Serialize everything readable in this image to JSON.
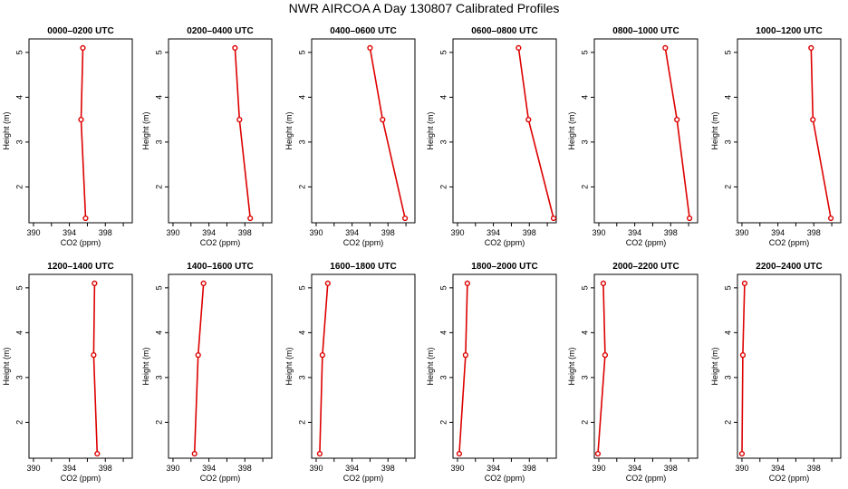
{
  "figure": {
    "title": "NWR AIRCOA A  Day 130807  Calibrated Profiles"
  },
  "style": {
    "line_color": "#dd0000",
    "axis_color": "#000000"
  },
  "chart_data": [
    {
      "type": "line",
      "title": "0000–0200 UTC",
      "xlabel": "CO2 (ppm)",
      "ylabel": "Height (m)",
      "xlim": [
        389.5,
        401.0
      ],
      "ylim": [
        1.2,
        5.3
      ],
      "xticks": [
        390,
        394,
        398
      ],
      "yticks": [
        2,
        3,
        4,
        5
      ],
      "x": [
        395.5,
        395.3,
        395.8
      ],
      "y": [
        5.1,
        3.5,
        1.3
      ]
    },
    {
      "type": "line",
      "title": "0200–0400 UTC",
      "xlabel": "CO2 (ppm)",
      "ylabel": "Height (m)",
      "xlim": [
        389.5,
        401.0
      ],
      "ylim": [
        1.2,
        5.3
      ],
      "xticks": [
        390,
        394,
        398
      ],
      "yticks": [
        2,
        3,
        4,
        5
      ],
      "x": [
        396.9,
        397.4,
        398.6
      ],
      "y": [
        5.1,
        3.5,
        1.3
      ]
    },
    {
      "type": "line",
      "title": "0400–0600 UTC",
      "xlabel": "CO2 (ppm)",
      "ylabel": "Height (m)",
      "xlim": [
        389.5,
        401.0
      ],
      "ylim": [
        1.2,
        5.3
      ],
      "xticks": [
        390,
        394,
        398
      ],
      "yticks": [
        2,
        3,
        4,
        5
      ],
      "x": [
        396.0,
        397.4,
        399.9
      ],
      "y": [
        5.1,
        3.5,
        1.3
      ]
    },
    {
      "type": "line",
      "title": "0600–0800 UTC",
      "xlabel": "CO2 (ppm)",
      "ylabel": "Height (m)",
      "xlim": [
        389.5,
        401.0
      ],
      "ylim": [
        1.2,
        5.3
      ],
      "xticks": [
        390,
        394,
        398
      ],
      "yticks": [
        2,
        3,
        4,
        5
      ],
      "x": [
        396.8,
        397.9,
        400.7
      ],
      "y": [
        5.1,
        3.5,
        1.3
      ]
    },
    {
      "type": "line",
      "title": "0800–1000 UTC",
      "xlabel": "CO2 (ppm)",
      "ylabel": "Height (m)",
      "xlim": [
        389.5,
        401.0
      ],
      "ylim": [
        1.2,
        5.3
      ],
      "xticks": [
        390,
        394,
        398
      ],
      "yticks": [
        2,
        3,
        4,
        5
      ],
      "x": [
        397.4,
        398.7,
        400.1
      ],
      "y": [
        5.1,
        3.5,
        1.3
      ]
    },
    {
      "type": "line",
      "title": "1000–1200 UTC",
      "xlabel": "CO2 (ppm)",
      "ylabel": "Height (m)",
      "xlim": [
        389.5,
        401.0
      ],
      "ylim": [
        1.2,
        5.3
      ],
      "xticks": [
        390,
        394,
        398
      ],
      "yticks": [
        2,
        3,
        4,
        5
      ],
      "x": [
        397.7,
        397.9,
        399.9
      ],
      "y": [
        5.1,
        3.5,
        1.3
      ]
    },
    {
      "type": "line",
      "title": "1200–1400 UTC",
      "xlabel": "CO2 (ppm)",
      "ylabel": "Height (m)",
      "xlim": [
        389.5,
        401.0
      ],
      "ylim": [
        1.2,
        5.3
      ],
      "xticks": [
        390,
        394,
        398
      ],
      "yticks": [
        2,
        3,
        4,
        5
      ],
      "x": [
        396.8,
        396.7,
        397.1
      ],
      "y": [
        5.1,
        3.5,
        1.3
      ]
    },
    {
      "type": "line",
      "title": "1400–1600 UTC",
      "xlabel": "CO2 (ppm)",
      "ylabel": "Height (m)",
      "xlim": [
        389.5,
        401.0
      ],
      "ylim": [
        1.2,
        5.3
      ],
      "xticks": [
        390,
        394,
        398
      ],
      "yticks": [
        2,
        3,
        4,
        5
      ],
      "x": [
        393.4,
        392.8,
        392.4
      ],
      "y": [
        5.1,
        3.5,
        1.3
      ]
    },
    {
      "type": "line",
      "title": "1600–1800 UTC",
      "xlabel": "CO2 (ppm)",
      "ylabel": "Height (m)",
      "xlim": [
        389.5,
        401.0
      ],
      "ylim": [
        1.2,
        5.3
      ],
      "xticks": [
        390,
        394,
        398
      ],
      "yticks": [
        2,
        3,
        4,
        5
      ],
      "x": [
        391.3,
        390.7,
        390.4
      ],
      "y": [
        5.1,
        3.5,
        1.3
      ]
    },
    {
      "type": "line",
      "title": "1800–2000 UTC",
      "xlabel": "CO2 (ppm)",
      "ylabel": "Height (m)",
      "xlim": [
        389.5,
        401.0
      ],
      "ylim": [
        1.2,
        5.3
      ],
      "xticks": [
        390,
        394,
        398
      ],
      "yticks": [
        2,
        3,
        4,
        5
      ],
      "x": [
        391.1,
        390.9,
        390.2
      ],
      "y": [
        5.1,
        3.5,
        1.3
      ]
    },
    {
      "type": "line",
      "title": "2000–2200 UTC",
      "xlabel": "CO2 (ppm)",
      "ylabel": "Height (m)",
      "xlim": [
        389.5,
        401.0
      ],
      "ylim": [
        1.2,
        5.3
      ],
      "xticks": [
        390,
        394,
        398
      ],
      "yticks": [
        2,
        3,
        4,
        5
      ],
      "x": [
        390.5,
        390.7,
        389.9
      ],
      "y": [
        5.1,
        3.5,
        1.3
      ]
    },
    {
      "type": "line",
      "title": "2200–2400 UTC",
      "xlabel": "CO2 (ppm)",
      "ylabel": "Height (m)",
      "xlim": [
        389.5,
        401.0
      ],
      "ylim": [
        1.2,
        5.3
      ],
      "xticks": [
        390,
        394,
        398
      ],
      "yticks": [
        2,
        3,
        4,
        5
      ],
      "x": [
        390.3,
        390.1,
        390.0
      ],
      "y": [
        5.1,
        3.5,
        1.3
      ]
    }
  ]
}
